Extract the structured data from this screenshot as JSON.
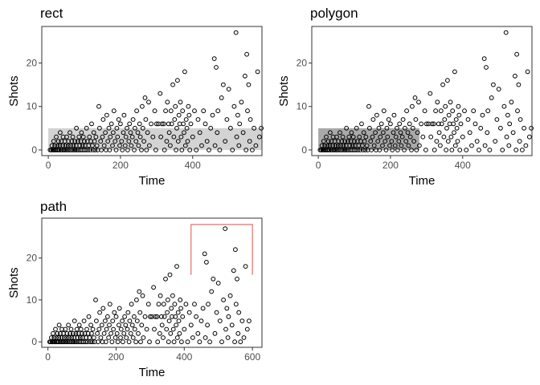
{
  "colors": {
    "point_stroke": "#000000",
    "rect_fill": "#d3d3d3",
    "polygon_fill": "#a9a9a9",
    "path_stroke": "#d9534f",
    "text": "#000000",
    "tick_text": "#4d4d4d",
    "border": "#333333"
  },
  "chart_data": [
    {
      "type": "scatter",
      "title": "rect",
      "xlabel": "Time",
      "ylabel": "Shots",
      "xlim": [
        -18,
        592
      ],
      "ylim": [
        -1.3,
        28.4
      ],
      "xticks": [
        0,
        200,
        400
      ],
      "yticks": [
        0,
        10,
        20
      ],
      "grid": false,
      "annotation": {
        "kind": "rect",
        "xmin": 0,
        "xmax": 600,
        "ymin": 0,
        "ymax": 5
      }
    },
    {
      "type": "scatter",
      "title": "polygon",
      "xlabel": "Time",
      "ylabel": "Shots",
      "xlim": [
        -18,
        592
      ],
      "ylim": [
        -1.3,
        28.4
      ],
      "xticks": [
        0,
        200,
        400
      ],
      "yticks": [
        0,
        10,
        20
      ],
      "grid": false,
      "annotation": {
        "kind": "polygon",
        "points": [
          [
            0,
            0
          ],
          [
            0,
            5
          ],
          [
            280,
            5
          ],
          [
            280,
            0
          ]
        ]
      }
    },
    {
      "type": "scatter",
      "title": "path",
      "xlabel": "Time",
      "ylabel": "Shots",
      "xlim": [
        -18,
        628
      ],
      "ylim": [
        -1.3,
        29.5
      ],
      "xticks": [
        0,
        200,
        400,
        600
      ],
      "yticks": [
        0,
        10,
        20
      ],
      "grid": false,
      "annotation": {
        "kind": "path",
        "points": [
          [
            420,
            16
          ],
          [
            420,
            28
          ],
          [
            600,
            28
          ],
          [
            600,
            16
          ]
        ]
      }
    }
  ],
  "points": [
    [
      5,
      0
    ],
    [
      8,
      0
    ],
    [
      10,
      1
    ],
    [
      12,
      0
    ],
    [
      14,
      0
    ],
    [
      15,
      2
    ],
    [
      17,
      0
    ],
    [
      18,
      1
    ],
    [
      20,
      0
    ],
    [
      22,
      3
    ],
    [
      24,
      0
    ],
    [
      25,
      1
    ],
    [
      27,
      0
    ],
    [
      28,
      2
    ],
    [
      30,
      0
    ],
    [
      32,
      1
    ],
    [
      33,
      4
    ],
    [
      35,
      0
    ],
    [
      36,
      2
    ],
    [
      38,
      0
    ],
    [
      40,
      1
    ],
    [
      41,
      3
    ],
    [
      43,
      0
    ],
    [
      45,
      0
    ],
    [
      46,
      2
    ],
    [
      48,
      1
    ],
    [
      50,
      0
    ],
    [
      51,
      3
    ],
    [
      53,
      0
    ],
    [
      55,
      1
    ],
    [
      56,
      2
    ],
    [
      58,
      0
    ],
    [
      60,
      4
    ],
    [
      62,
      1
    ],
    [
      63,
      0
    ],
    [
      65,
      2
    ],
    [
      67,
      0
    ],
    [
      68,
      3
    ],
    [
      70,
      1
    ],
    [
      72,
      0
    ],
    [
      74,
      2
    ],
    [
      75,
      0
    ],
    [
      77,
      1
    ],
    [
      78,
      5
    ],
    [
      80,
      0
    ],
    [
      82,
      2
    ],
    [
      84,
      0
    ],
    [
      85,
      3
    ],
    [
      87,
      1
    ],
    [
      89,
      0
    ],
    [
      90,
      2
    ],
    [
      92,
      4
    ],
    [
      94,
      0
    ],
    [
      95,
      1
    ],
    [
      97,
      3
    ],
    [
      99,
      0
    ],
    [
      100,
      2
    ],
    [
      102,
      1
    ],
    [
      104,
      0
    ],
    [
      106,
      5
    ],
    [
      108,
      2
    ],
    [
      110,
      0
    ],
    [
      112,
      1
    ],
    [
      114,
      3
    ],
    [
      116,
      0
    ],
    [
      118,
      2
    ],
    [
      120,
      6
    ],
    [
      122,
      1
    ],
    [
      124,
      0
    ],
    [
      126,
      4
    ],
    [
      128,
      2
    ],
    [
      130,
      0
    ],
    [
      132,
      3
    ],
    [
      135,
      1
    ],
    [
      137,
      0
    ],
    [
      140,
      10
    ],
    [
      142,
      5
    ],
    [
      145,
      2
    ],
    [
      147,
      0
    ],
    [
      150,
      3
    ],
    [
      152,
      7
    ],
    [
      155,
      1
    ],
    [
      158,
      4
    ],
    [
      160,
      0
    ],
    [
      162,
      8
    ],
    [
      165,
      2
    ],
    [
      168,
      5
    ],
    [
      170,
      0
    ],
    [
      172,
      3
    ],
    [
      175,
      6
    ],
    [
      178,
      1
    ],
    [
      180,
      4
    ],
    [
      182,
      9
    ],
    [
      185,
      2
    ],
    [
      188,
      0
    ],
    [
      190,
      5
    ],
    [
      192,
      3
    ],
    [
      195,
      7
    ],
    [
      198,
      1
    ],
    [
      200,
      6
    ],
    [
      203,
      2
    ],
    [
      205,
      0
    ],
    [
      208,
      4
    ],
    [
      210,
      8
    ],
    [
      213,
      1
    ],
    [
      215,
      3
    ],
    [
      218,
      5
    ],
    [
      220,
      0
    ],
    [
      223,
      2
    ],
    [
      225,
      6
    ],
    [
      228,
      4
    ],
    [
      230,
      1
    ],
    [
      233,
      3
    ],
    [
      235,
      7
    ],
    [
      238,
      0
    ],
    [
      240,
      5
    ],
    [
      243,
      2
    ],
    [
      245,
      9
    ],
    [
      248,
      4
    ],
    [
      250,
      1
    ],
    [
      253,
      6
    ],
    [
      255,
      3
    ],
    [
      258,
      0
    ],
    [
      260,
      10
    ],
    [
      262,
      5
    ],
    [
      265,
      2
    ],
    [
      268,
      12
    ],
    [
      270,
      7
    ],
    [
      272,
      0
    ],
    [
      275,
      4
    ],
    [
      278,
      11
    ],
    [
      280,
      1
    ],
    [
      285,
      6
    ],
    [
      290,
      3
    ],
    [
      295,
      9
    ],
    [
      298,
      0
    ],
    [
      300,
      6
    ],
    [
      305,
      6
    ],
    [
      310,
      13
    ],
    [
      312,
      3
    ],
    [
      315,
      6
    ],
    [
      320,
      6
    ],
    [
      322,
      0
    ],
    [
      325,
      9
    ],
    [
      328,
      2
    ],
    [
      330,
      11
    ],
    [
      333,
      6
    ],
    [
      335,
      4
    ],
    [
      338,
      1
    ],
    [
      340,
      9
    ],
    [
      342,
      6
    ],
    [
      345,
      15
    ],
    [
      348,
      3
    ],
    [
      350,
      7
    ],
    [
      352,
      10
    ],
    [
      354,
      0
    ],
    [
      356,
      5
    ],
    [
      358,
      16
    ],
    [
      360,
      2
    ],
    [
      362,
      8
    ],
    [
      364,
      6
    ],
    [
      366,
      11
    ],
    [
      368,
      3
    ],
    [
      370,
      0
    ],
    [
      372,
      9
    ],
    [
      374,
      6
    ],
    [
      376,
      4
    ],
    [
      378,
      18
    ],
    [
      380,
      1
    ],
    [
      382,
      7
    ],
    [
      384,
      5
    ],
    [
      386,
      2
    ],
    [
      388,
      10
    ],
    [
      390,
      8
    ],
    [
      392,
      0
    ],
    [
      395,
      6
    ],
    [
      400,
      3
    ],
    [
      405,
      9
    ],
    [
      410,
      0
    ],
    [
      415,
      7
    ],
    [
      420,
      4
    ],
    [
      425,
      1
    ],
    [
      430,
      9
    ],
    [
      435,
      6
    ],
    [
      440,
      2
    ],
    [
      445,
      0
    ],
    [
      450,
      5
    ],
    [
      455,
      8
    ],
    [
      460,
      21
    ],
    [
      462,
      1
    ],
    [
      465,
      19
    ],
    [
      468,
      4
    ],
    [
      470,
      9
    ],
    [
      475,
      0
    ],
    [
      480,
      12
    ],
    [
      485,
      15
    ],
    [
      490,
      2
    ],
    [
      495,
      7
    ],
    [
      500,
      14
    ],
    [
      505,
      5
    ],
    [
      510,
      0
    ],
    [
      515,
      10
    ],
    [
      520,
      27
    ],
    [
      522,
      3
    ],
    [
      525,
      8
    ],
    [
      528,
      1
    ],
    [
      530,
      6
    ],
    [
      535,
      11
    ],
    [
      540,
      4
    ],
    [
      545,
      17
    ],
    [
      548,
      0
    ],
    [
      550,
      22
    ],
    [
      552,
      9
    ],
    [
      555,
      15
    ],
    [
      558,
      2
    ],
    [
      560,
      7
    ],
    [
      565,
      0
    ],
    [
      570,
      5
    ],
    [
      575,
      1
    ],
    [
      580,
      18
    ],
    [
      585,
      3
    ],
    [
      590,
      5
    ]
  ]
}
